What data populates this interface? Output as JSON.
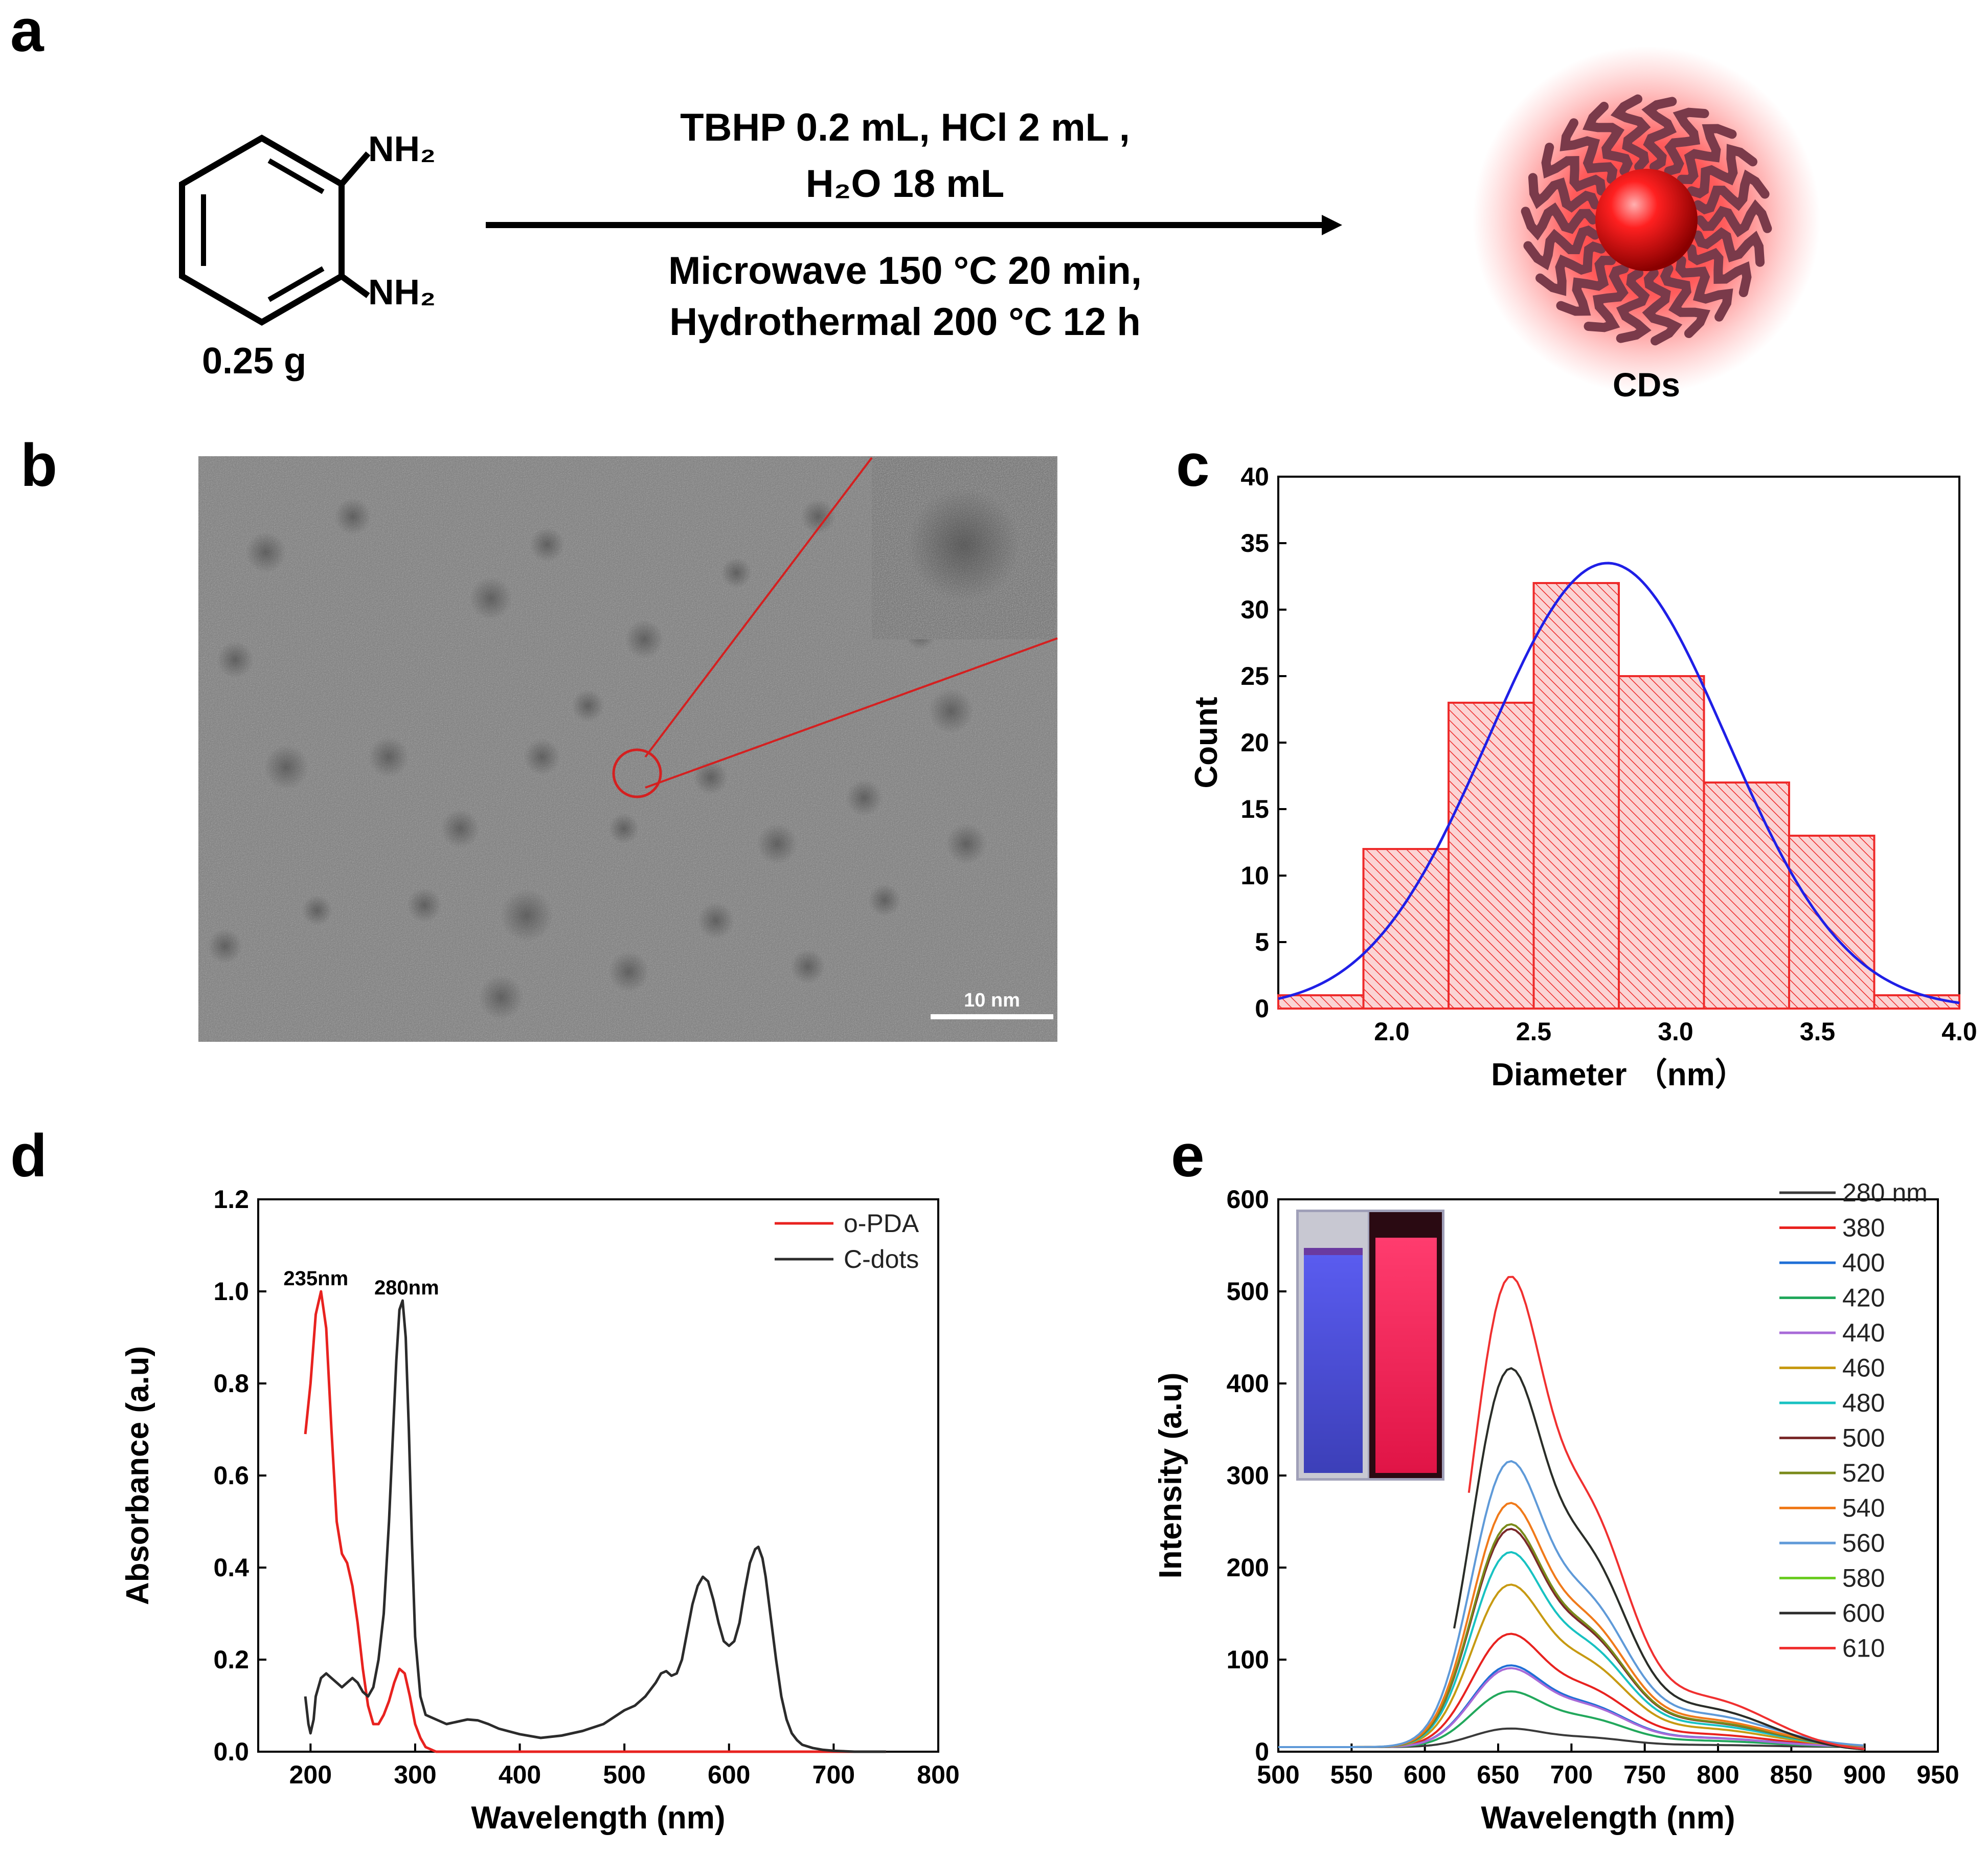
{
  "panels": {
    "a": {
      "label": "a",
      "reactant": {
        "amine_top": "NH₂",
        "amine_bottom": "NH₂",
        "mass": "0.25 g"
      },
      "conditions": {
        "line1": "TBHP 0.2 mL, HCl 2 mL ,",
        "line2": "H₂O 18 mL",
        "line3": "Microwave 150 °C 20 min,",
        "line4": "Hydrothermal 200 °C 12 h"
      },
      "product_label": "CDs"
    },
    "b": {
      "label": "b",
      "scale_bar": "10 nm"
    },
    "c": {
      "label": "c"
    },
    "d": {
      "label": "d"
    },
    "e": {
      "label": "e"
    }
  },
  "chart_data": [
    {
      "id": "c",
      "type": "bar",
      "xlabel": "Diameter （nm）",
      "ylabel": "Count",
      "xlim": [
        1.6,
        4.0
      ],
      "ylim": [
        0,
        40
      ],
      "xticks": [
        2.0,
        2.5,
        3.0,
        3.5,
        4.0
      ],
      "yticks": [
        0,
        5,
        10,
        15,
        20,
        25,
        30,
        35,
        40
      ],
      "bins": [
        {
          "x0": 1.6,
          "x1": 1.9,
          "count": 1
        },
        {
          "x0": 1.9,
          "x1": 2.2,
          "count": 12
        },
        {
          "x0": 2.2,
          "x1": 2.5,
          "count": 23
        },
        {
          "x0": 2.5,
          "x1": 2.8,
          "count": 32
        },
        {
          "x0": 2.8,
          "x1": 3.1,
          "count": 25
        },
        {
          "x0": 3.1,
          "x1": 3.4,
          "count": 17
        },
        {
          "x0": 3.4,
          "x1": 3.7,
          "count": 13
        },
        {
          "x0": 3.7,
          "x1": 4.0,
          "count": 1
        }
      ],
      "fit": {
        "type": "gaussian",
        "center": 2.76,
        "sigma": 0.42,
        "peak": 33.5,
        "color": "#1f1fe6"
      },
      "bar_color": "#ee2b2b"
    },
    {
      "id": "d",
      "type": "line",
      "xlabel": "Wavelength (nm)",
      "ylabel": "Absorbance (a.u)",
      "xlim": [
        150,
        800
      ],
      "ylim": [
        0,
        1.2
      ],
      "xticks": [
        200,
        300,
        400,
        500,
        600,
        700,
        800
      ],
      "yticks": [
        0.0,
        0.2,
        0.4,
        0.6,
        0.8,
        1.0,
        1.2
      ],
      "legend_position": "top-right",
      "annotations": [
        {
          "text": "235nm",
          "x": 210,
          "y": 1.02
        },
        {
          "text": "280nm",
          "x": 287,
          "y": 1.0
        }
      ],
      "series": [
        {
          "name": "o-PDA",
          "color": "#e8221f",
          "x": [
            195,
            200,
            205,
            210,
            215,
            220,
            225,
            230,
            235,
            240,
            245,
            250,
            255,
            260,
            265,
            270,
            275,
            280,
            285,
            290,
            295,
            300,
            305,
            310,
            315,
            320,
            330,
            340,
            350,
            400,
            500,
            600,
            700,
            750
          ],
          "y": [
            0.69,
            0.8,
            0.95,
            1.0,
            0.92,
            0.7,
            0.5,
            0.43,
            0.41,
            0.36,
            0.28,
            0.18,
            0.1,
            0.06,
            0.06,
            0.08,
            0.11,
            0.15,
            0.18,
            0.17,
            0.12,
            0.06,
            0.03,
            0.01,
            0.005,
            0.0,
            0.0,
            0.0,
            0.0,
            0.0,
            0.0,
            0.0,
            0.0,
            0.0
          ]
        },
        {
          "name": "C-dots",
          "color": "#2b2b2b",
          "x": [
            195,
            198,
            200,
            203,
            205,
            210,
            215,
            220,
            225,
            230,
            235,
            240,
            245,
            250,
            255,
            260,
            265,
            270,
            275,
            278,
            282,
            285,
            288,
            291,
            294,
            297,
            300,
            305,
            310,
            320,
            330,
            340,
            350,
            360,
            370,
            380,
            400,
            420,
            440,
            460,
            480,
            490,
            500,
            510,
            520,
            530,
            535,
            540,
            545,
            550,
            555,
            560,
            565,
            570,
            575,
            580,
            585,
            590,
            595,
            600,
            605,
            610,
            615,
            620,
            625,
            628,
            632,
            635,
            640,
            645,
            650,
            655,
            660,
            665,
            670,
            680,
            690,
            700,
            720,
            750
          ],
          "y": [
            0.12,
            0.06,
            0.04,
            0.07,
            0.12,
            0.16,
            0.17,
            0.16,
            0.15,
            0.14,
            0.15,
            0.16,
            0.15,
            0.13,
            0.12,
            0.14,
            0.2,
            0.3,
            0.5,
            0.65,
            0.85,
            0.96,
            0.98,
            0.9,
            0.7,
            0.45,
            0.25,
            0.12,
            0.08,
            0.07,
            0.06,
            0.065,
            0.07,
            0.068,
            0.06,
            0.05,
            0.038,
            0.03,
            0.035,
            0.045,
            0.06,
            0.075,
            0.09,
            0.1,
            0.12,
            0.15,
            0.17,
            0.175,
            0.165,
            0.17,
            0.2,
            0.26,
            0.32,
            0.36,
            0.38,
            0.37,
            0.33,
            0.28,
            0.24,
            0.23,
            0.24,
            0.28,
            0.35,
            0.41,
            0.44,
            0.445,
            0.42,
            0.38,
            0.29,
            0.2,
            0.12,
            0.07,
            0.04,
            0.025,
            0.015,
            0.008,
            0.004,
            0.002,
            0.0,
            0.0
          ]
        }
      ]
    },
    {
      "id": "e",
      "type": "line",
      "xlabel": "Wavelength (nm)",
      "ylabel": "Intensity (a.u)",
      "xlim": [
        500,
        950
      ],
      "ylim": [
        0,
        600
      ],
      "xticks": [
        500,
        550,
        600,
        650,
        700,
        750,
        800,
        850,
        900,
        950
      ],
      "yticks": [
        0,
        100,
        200,
        300,
        400,
        500,
        600
      ],
      "legend_position": "right",
      "inset": "photo of two cuvettes (blue and red emission)",
      "series": [
        {
          "name": "280 nm",
          "color": "#3a3a3a",
          "peak": 20,
          "start": 500
        },
        {
          "name": "380",
          "color": "#e8221f",
          "peak": 122,
          "start": 500
        },
        {
          "name": "400",
          "color": "#1f6fd6",
          "peak": 88,
          "start": 500
        },
        {
          "name": "420",
          "color": "#22a85c",
          "peak": 60,
          "start": 500
        },
        {
          "name": "440",
          "color": "#a86ad8",
          "peak": 85,
          "start": 500
        },
        {
          "name": "460",
          "color": "#c79a12",
          "peak": 175,
          "start": 500
        },
        {
          "name": "480",
          "color": "#18c2c2",
          "peak": 210,
          "start": 500
        },
        {
          "name": "500",
          "color": "#7a2a2a",
          "peak": 235,
          "start": 500
        },
        {
          "name": "520",
          "color": "#7a8a1a",
          "peak": 240,
          "start": 500
        },
        {
          "name": "540",
          "color": "#f07a1a",
          "peak": 263,
          "start": 500
        },
        {
          "name": "560",
          "color": "#5f9ad8",
          "peak": 308,
          "start": 500
        },
        {
          "name": "580",
          "color": "#6acc22",
          "peak": 413,
          "start": 620
        },
        {
          "name": "600",
          "color": "#2b2b2b",
          "peak": 413,
          "start": 620
        },
        {
          "name": "610",
          "color": "#f03030",
          "peak": 512,
          "start": 630
        }
      ]
    }
  ]
}
